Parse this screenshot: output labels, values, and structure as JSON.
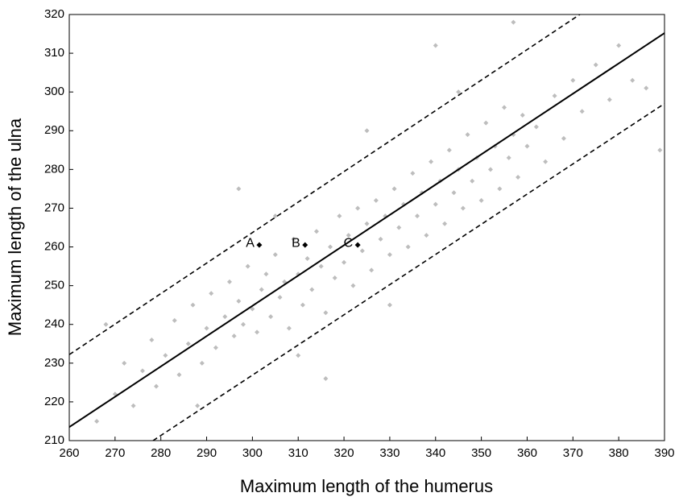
{
  "chart_data": {
    "type": "scatter",
    "x_label": "Maximum length of the humerus",
    "y_label": "Maximum length of the ulna",
    "xlim": [
      260,
      390
    ],
    "ylim": [
      210,
      320
    ],
    "xticks": [
      260,
      270,
      280,
      290,
      300,
      310,
      320,
      330,
      340,
      350,
      360,
      370,
      380,
      390
    ],
    "yticks": [
      210,
      220,
      230,
      240,
      250,
      260,
      270,
      280,
      290,
      300,
      310,
      320
    ],
    "points": {
      "color": "#bdbdbd",
      "x": [
        266,
        268,
        270,
        272,
        274,
        276,
        278,
        279,
        281,
        283,
        284,
        286,
        287,
        289,
        290,
        291,
        292,
        294,
        295,
        296,
        297,
        298,
        299,
        300,
        301,
        302,
        303,
        304,
        305,
        306,
        307,
        308,
        309,
        310,
        311,
        312,
        313,
        314,
        315,
        316,
        317,
        318,
        319,
        320,
        321,
        322,
        323,
        324,
        325,
        326,
        327,
        328,
        329,
        330,
        331,
        332,
        333,
        334,
        335,
        336,
        337,
        338,
        339,
        340,
        341,
        342,
        343,
        344,
        345,
        346,
        347,
        348,
        349,
        350,
        351,
        352,
        353,
        354,
        355,
        356,
        357,
        358,
        359,
        360,
        362,
        364,
        366,
        368,
        370,
        372,
        375,
        378,
        380,
        383,
        386,
        389,
        340,
        357,
        316,
        297,
        288,
        310,
        330,
        345,
        325,
        305
      ],
      "y": [
        215,
        240,
        222,
        230,
        219,
        228,
        236,
        224,
        232,
        241,
        227,
        235,
        245,
        230,
        239,
        248,
        234,
        242,
        251,
        237,
        246,
        240,
        255,
        244,
        238,
        249,
        253,
        242,
        258,
        247,
        251,
        239,
        262,
        253,
        245,
        257,
        249,
        264,
        255,
        243,
        260,
        252,
        268,
        256,
        263,
        250,
        270,
        259,
        266,
        254,
        272,
        262,
        268,
        258,
        275,
        265,
        271,
        260,
        279,
        268,
        274,
        263,
        282,
        271,
        277,
        266,
        285,
        274,
        280,
        270,
        289,
        277,
        283,
        272,
        292,
        280,
        286,
        275,
        296,
        283,
        289,
        278,
        294,
        286,
        291,
        282,
        299,
        288,
        303,
        295,
        307,
        298,
        312,
        303,
        301,
        285,
        312,
        318,
        226,
        275,
        219,
        232,
        245,
        300,
        290,
        268
      ]
    },
    "lines": [
      {
        "color": "#000000",
        "dash": false,
        "x": [
          260,
          390
        ],
        "values": [
          213.5,
          315.2
        ]
      },
      {
        "color": "#000000",
        "dash": true,
        "x": [
          260,
          371.5
        ],
        "values": [
          232.2,
          320
        ]
      },
      {
        "color": "#000000",
        "dash": true,
        "x": [
          278.3,
          390
        ],
        "values": [
          210,
          297
        ]
      }
    ],
    "markers": {
      "color": "#000000",
      "labels": [
        "A",
        "B",
        "C"
      ],
      "x": [
        301.5,
        311.5,
        323
      ],
      "y": [
        260.5,
        260.5,
        260.5
      ]
    }
  }
}
